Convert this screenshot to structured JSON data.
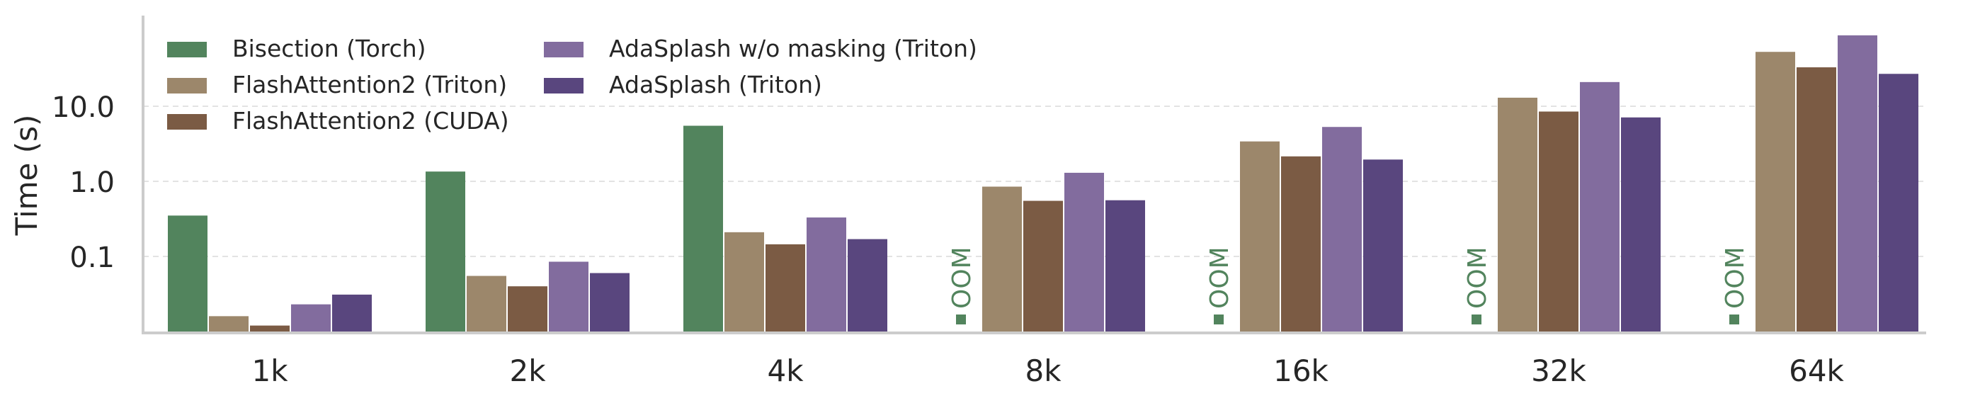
{
  "chart_data": {
    "type": "bar",
    "title": "",
    "xlabel": "",
    "ylabel": "Time (s)",
    "yscale": "log",
    "ylim": [
      0.01,
      200
    ],
    "yticks": [
      0.1,
      1.0,
      10.0
    ],
    "ytick_labels": [
      "0.1",
      "1.0",
      "10.0"
    ],
    "grid": "horizontal dashed",
    "legend_position": "top-left",
    "categories": [
      "1k",
      "2k",
      "4k",
      "8k",
      "16k",
      "32k",
      "64k"
    ],
    "series": [
      {
        "name": "Bisection (Torch)",
        "color": "#52845d",
        "values": [
          0.35,
          1.35,
          5.5,
          null,
          null,
          null,
          null
        ],
        "oom": [
          false,
          false,
          false,
          true,
          true,
          true,
          true
        ]
      },
      {
        "name": "FlashAttention2 (Triton)",
        "color": "#9c876b",
        "values": [
          0.016,
          0.055,
          0.21,
          0.85,
          3.4,
          13.0,
          53.0
        ]
      },
      {
        "name": "FlashAttention2 (CUDA)",
        "color": "#7b5b44",
        "values": [
          0.012,
          0.04,
          0.145,
          0.55,
          2.15,
          8.5,
          33.0
        ]
      },
      {
        "name": "AdaSplash w/o masking (Triton)",
        "color": "#826c9e",
        "values": [
          0.023,
          0.085,
          0.33,
          1.3,
          5.3,
          21.0,
          88.0
        ]
      },
      {
        "name": "AdaSplash (Triton)",
        "color": "#59467e",
        "values": [
          0.031,
          0.06,
          0.17,
          0.56,
          1.95,
          7.1,
          27.0
        ]
      }
    ],
    "oom_label": "OOM"
  }
}
